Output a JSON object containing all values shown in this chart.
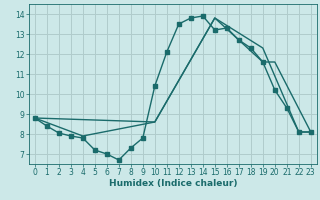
{
  "xlabel": "Humidex (Indice chaleur)",
  "bg_color": "#cce8e8",
  "grid_color": "#b0cccc",
  "line_color": "#1a6b6b",
  "xlim": [
    -0.5,
    23.5
  ],
  "ylim": [
    6.5,
    14.5
  ],
  "yticks": [
    7,
    8,
    9,
    10,
    11,
    12,
    13,
    14
  ],
  "xticks": [
    0,
    1,
    2,
    3,
    4,
    5,
    6,
    7,
    8,
    9,
    10,
    11,
    12,
    13,
    14,
    15,
    16,
    17,
    18,
    19,
    20,
    21,
    22,
    23
  ],
  "series1_x": [
    0,
    1,
    2,
    3,
    4,
    5,
    6,
    7,
    8,
    9,
    10,
    11,
    12,
    13,
    14,
    15,
    16,
    17,
    18,
    19,
    20,
    21,
    22,
    23
  ],
  "series1_y": [
    8.8,
    8.4,
    8.05,
    7.9,
    7.8,
    7.2,
    7.0,
    6.7,
    7.3,
    7.8,
    10.4,
    12.1,
    13.5,
    13.8,
    13.9,
    13.2,
    13.3,
    12.7,
    12.3,
    11.6,
    10.2,
    9.3,
    8.1,
    8.1
  ],
  "series2_x": [
    0,
    10,
    15,
    19,
    20,
    23
  ],
  "series2_y": [
    8.8,
    8.6,
    13.8,
    11.6,
    11.6,
    8.1
  ],
  "series3_x": [
    0,
    4,
    10,
    15,
    19,
    22,
    23
  ],
  "series3_y": [
    8.8,
    7.9,
    8.6,
    13.8,
    12.3,
    8.1,
    8.1
  ],
  "line_width": 1.0,
  "marker_size": 2.5,
  "xlabel_fontsize": 6.5,
  "tick_fontsize": 5.5
}
